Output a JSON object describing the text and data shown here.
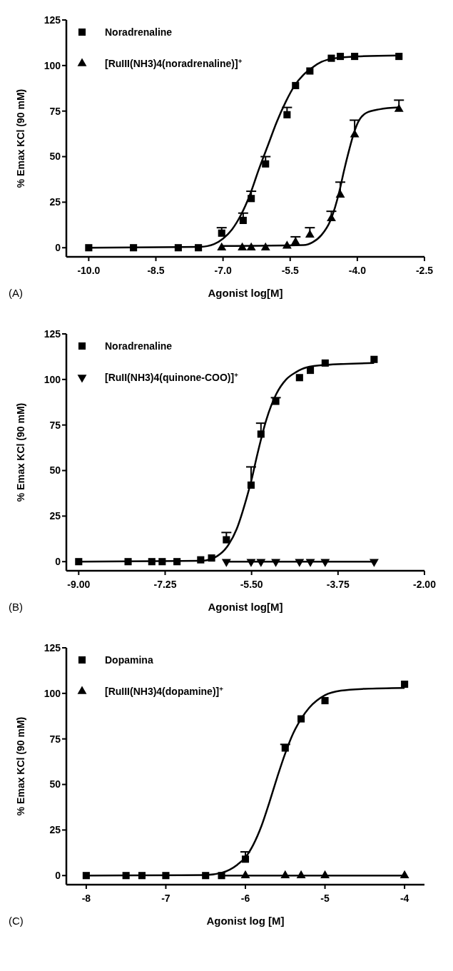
{
  "chart_data": [
    {
      "type": "scatter",
      "xlabel": "Agonist log[M]",
      "ylabel": "% Emax KCl (90 mM)",
      "annotations": [
        "(A)"
      ],
      "legend": "top left",
      "xlim": [
        -10.5,
        -2.5
      ],
      "ylim": [
        -5,
        125
      ],
      "xticks": [
        {
          "value": -10,
          "label": "-10.0"
        },
        -8.5,
        {
          "value": -7,
          "label": "-7.0"
        },
        -5.5,
        {
          "value": -4,
          "label": "-4.0"
        },
        -2.5
      ],
      "yticks": [
        0,
        25,
        50,
        75,
        100,
        125
      ],
      "series": [
        {
          "name": "Noradrenaline",
          "color": "#000000",
          "marker": "square",
          "x": [
            -10,
            -9,
            -8,
            -7.55,
            -7.03,
            -6.55,
            -6.37,
            -6.05,
            -5.57,
            -5.38,
            -5.06,
            -4.58,
            -4.38,
            -4.06,
            -3.07
          ],
          "values": [
            0,
            0,
            0,
            0,
            8,
            15,
            27,
            46,
            73,
            89,
            97,
            104,
            105,
            105,
            105
          ],
          "errors": [
            null,
            null,
            null,
            null,
            [
              8,
              11
            ],
            [
              15,
              19
            ],
            [
              27,
              31
            ],
            [
              46,
              50
            ],
            [
              73,
              77
            ],
            null,
            null,
            null,
            null,
            null,
            null
          ]
        },
        {
          "name": "[RuIII(NH3)4(noradrenaline)]$^{+}$",
          "color": "#000000",
          "marker": "triangle",
          "x": [
            -7.03,
            -6.57,
            -6.37,
            -6.05,
            -5.57,
            -5.38,
            -5.06,
            -4.58,
            -4.38,
            -4.06,
            -3.07
          ],
          "values": [
            0,
            0,
            0,
            0,
            1,
            3,
            7,
            16,
            29,
            62,
            76
          ],
          "errors": [
            null,
            null,
            null,
            null,
            null,
            [
              3,
              6
            ],
            [
              7,
              11
            ],
            [
              16,
              20
            ],
            [
              29,
              36
            ],
            [
              62,
              70
            ],
            [
              76,
              81
            ]
          ]
        },
        {
          "type": "line",
          "color": "#000000",
          "marker": "none",
          "x": [
            -10,
            -7.5,
            -7.2,
            -7,
            -6.8,
            -6.6,
            -6.4,
            -6.2,
            -6,
            -5.8,
            -5.6,
            -5.4,
            -5.2,
            -5,
            -4.8,
            -4.5,
            -4,
            -3.07
          ],
          "values": [
            0,
            0.5,
            2,
            5,
            10,
            18,
            29,
            43,
            56,
            69,
            80,
            89,
            95,
            99,
            102,
            104,
            105,
            105.5
          ]
        },
        {
          "type": "line",
          "color": "#000000",
          "marker": "none",
          "x": [
            -7.03,
            -5.2,
            -5,
            -4.8,
            -4.6,
            -4.5,
            -4.4,
            -4.3,
            -4.2,
            -4.1,
            -4,
            -3.8,
            -3.5,
            -3.07
          ],
          "values": [
            1,
            1.5,
            3,
            7,
            15,
            22,
            31,
            42,
            52,
            61,
            68,
            74,
            76,
            77
          ]
        }
      ]
    },
    {
      "type": "scatter",
      "xlabel": "Agonist log[M]",
      "ylabel": "% Emax KCl (90 mM)",
      "annotations": [
        "(B)"
      ],
      "legend": "top left",
      "xlim": [
        -9.25,
        -2
      ],
      "ylim": [
        -5,
        125
      ],
      "xticks": [
        {
          "value": -9,
          "label": "-9.00"
        },
        -7.25,
        {
          "value": -5.5,
          "label": "-5.50"
        },
        -3.75,
        {
          "value": -2,
          "label": "-2.00"
        }
      ],
      "yticks": [
        0,
        25,
        50,
        75,
        100,
        125
      ],
      "series": [
        {
          "name": "Noradrenaline",
          "color": "#000000",
          "marker": "square",
          "x": [
            -9,
            -8,
            -7.52,
            -7.31,
            -7.01,
            -6.53,
            -6.31,
            -6.01,
            -5.51,
            -5.31,
            -5.01,
            -4.53,
            -4.31,
            -4.01,
            -3.02
          ],
          "values": [
            0,
            0,
            0,
            0,
            0,
            1,
            2,
            12,
            42,
            70,
            88,
            101,
            105,
            109,
            111
          ],
          "errors": [
            null,
            null,
            null,
            null,
            null,
            null,
            null,
            [
              12,
              16
            ],
            [
              42,
              52
            ],
            [
              70,
              76
            ],
            [
              88,
              90
            ],
            null,
            null,
            null,
            null
          ]
        },
        {
          "name": "[RuII(NH3)4(quinone-COO)]$^{+}$",
          "color": "#000000",
          "marker": "triangle-down",
          "x": [
            -6.01,
            -5.51,
            -5.31,
            -5.01,
            -4.53,
            -4.31,
            -4.01,
            -3.02
          ],
          "values": [
            0,
            0,
            0,
            0,
            0,
            0,
            0,
            0
          ]
        },
        {
          "type": "line",
          "color": "#000000",
          "marker": "none",
          "x": [
            -9,
            -6.5,
            -6.2,
            -6,
            -5.8,
            -5.6,
            -5.5,
            -5.4,
            -5.2,
            -5,
            -4.8,
            -4.6,
            -4.4,
            -4,
            -3.02
          ],
          "values": [
            0,
            0.5,
            3,
            8,
            18,
            35,
            45,
            57,
            78,
            92,
            100,
            104,
            106.5,
            108,
            109
          ]
        },
        {
          "type": "line",
          "color": "#000000",
          "marker": "none",
          "x": [
            -6.01,
            -3.02
          ],
          "values": [
            0,
            0
          ]
        }
      ]
    },
    {
      "type": "scatter",
      "xlabel": "Agonist log [M]",
      "ylabel": "% Emax KCl (90 mM)",
      "annotations": [
        "(C)"
      ],
      "legend": "top left",
      "xlim": [
        -8.25,
        -3.75
      ],
      "ylim": [
        -5,
        125
      ],
      "xticks": [
        -8,
        -7,
        -6,
        -5,
        -4
      ],
      "yticks": [
        0,
        25,
        50,
        75,
        100,
        125
      ],
      "series": [
        {
          "name": "Dopamina",
          "color": "#000000",
          "marker": "square",
          "x": [
            -8,
            -7.5,
            -7.3,
            -7,
            -6.5,
            -6.3,
            -6,
            -5.5,
            -5.3,
            -5,
            -4
          ],
          "values": [
            0,
            0,
            0,
            0,
            0,
            0,
            9,
            70,
            86,
            96,
            105
          ],
          "errors": [
            null,
            null,
            null,
            null,
            null,
            null,
            [
              9,
              13
            ],
            [
              70,
              72
            ],
            null,
            null,
            null
          ]
        },
        {
          "name": "[RuIII(NH3)4(dopamine)]$^{+}$",
          "color": "#000000",
          "marker": "triangle",
          "x": [
            -6,
            -5.5,
            -5.3,
            -5,
            -4
          ],
          "values": [
            0,
            0,
            0,
            0,
            0
          ]
        },
        {
          "type": "line",
          "color": "#000000",
          "marker": "none",
          "x": [
            -8,
            -6.5,
            -6.3,
            -6.1,
            -6,
            -5.9,
            -5.8,
            -5.7,
            -5.6,
            -5.5,
            -5.4,
            -5.3,
            -5.2,
            -5,
            -4.8,
            -4.5,
            -4
          ],
          "values": [
            0,
            0.3,
            1.5,
            6,
            10,
            17,
            27,
            40,
            54,
            67,
            78,
            86,
            92,
            99,
            101.5,
            102.5,
            103
          ]
        },
        {
          "type": "line",
          "color": "#000000",
          "marker": "none",
          "x": [
            -6.3,
            -4
          ],
          "values": [
            0,
            0
          ]
        }
      ]
    }
  ]
}
